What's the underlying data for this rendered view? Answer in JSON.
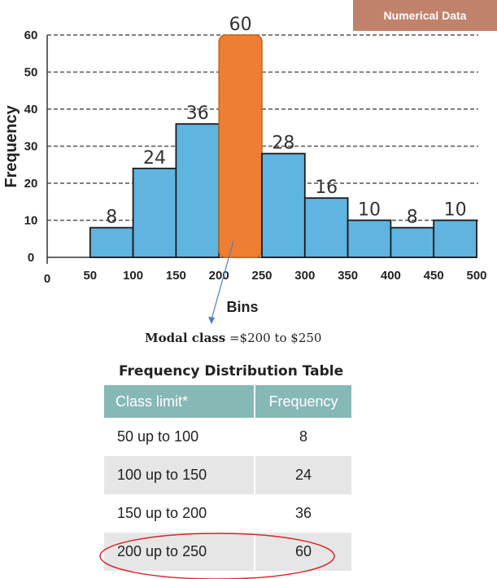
{
  "badge": "Numerical Data",
  "chart_data": {
    "type": "bar",
    "title": "",
    "xlabel": "Bins",
    "ylabel": "Frequency",
    "ylim": [
      0,
      60
    ],
    "y_ticks": [
      "0",
      "10",
      "20",
      "30",
      "40",
      "50",
      "60"
    ],
    "x_ticks": [
      "0",
      "50",
      "100",
      "150",
      "200",
      "250",
      "300",
      "350",
      "400",
      "450",
      "500"
    ],
    "bins": [
      [
        50,
        100
      ],
      [
        100,
        150
      ],
      [
        150,
        200
      ],
      [
        200,
        250
      ],
      [
        250,
        300
      ],
      [
        300,
        350
      ],
      [
        350,
        400
      ],
      [
        400,
        450
      ],
      [
        450,
        500
      ]
    ],
    "values": [
      8,
      24,
      36,
      60,
      28,
      16,
      10,
      8,
      10
    ],
    "value_labels": [
      "8",
      "24",
      "36",
      "60",
      "28",
      "16",
      "10",
      "8",
      "10"
    ],
    "highlight_index": 3,
    "bar_color": "#5fb4e0",
    "highlight_color": "#ee7e31",
    "grid": "dashed horizontal"
  },
  "modal_note": {
    "label": "Modal class",
    "text": " =$200 to $250"
  },
  "table": {
    "title": "Frequency Distribution Table",
    "headers": [
      "Class limit*",
      "Frequency"
    ],
    "rows": [
      [
        "50 up to 100",
        "8"
      ],
      [
        "100 up to 150",
        "24"
      ],
      [
        "150 up to 200",
        "36"
      ],
      [
        "200 up to 250",
        "60"
      ]
    ]
  }
}
